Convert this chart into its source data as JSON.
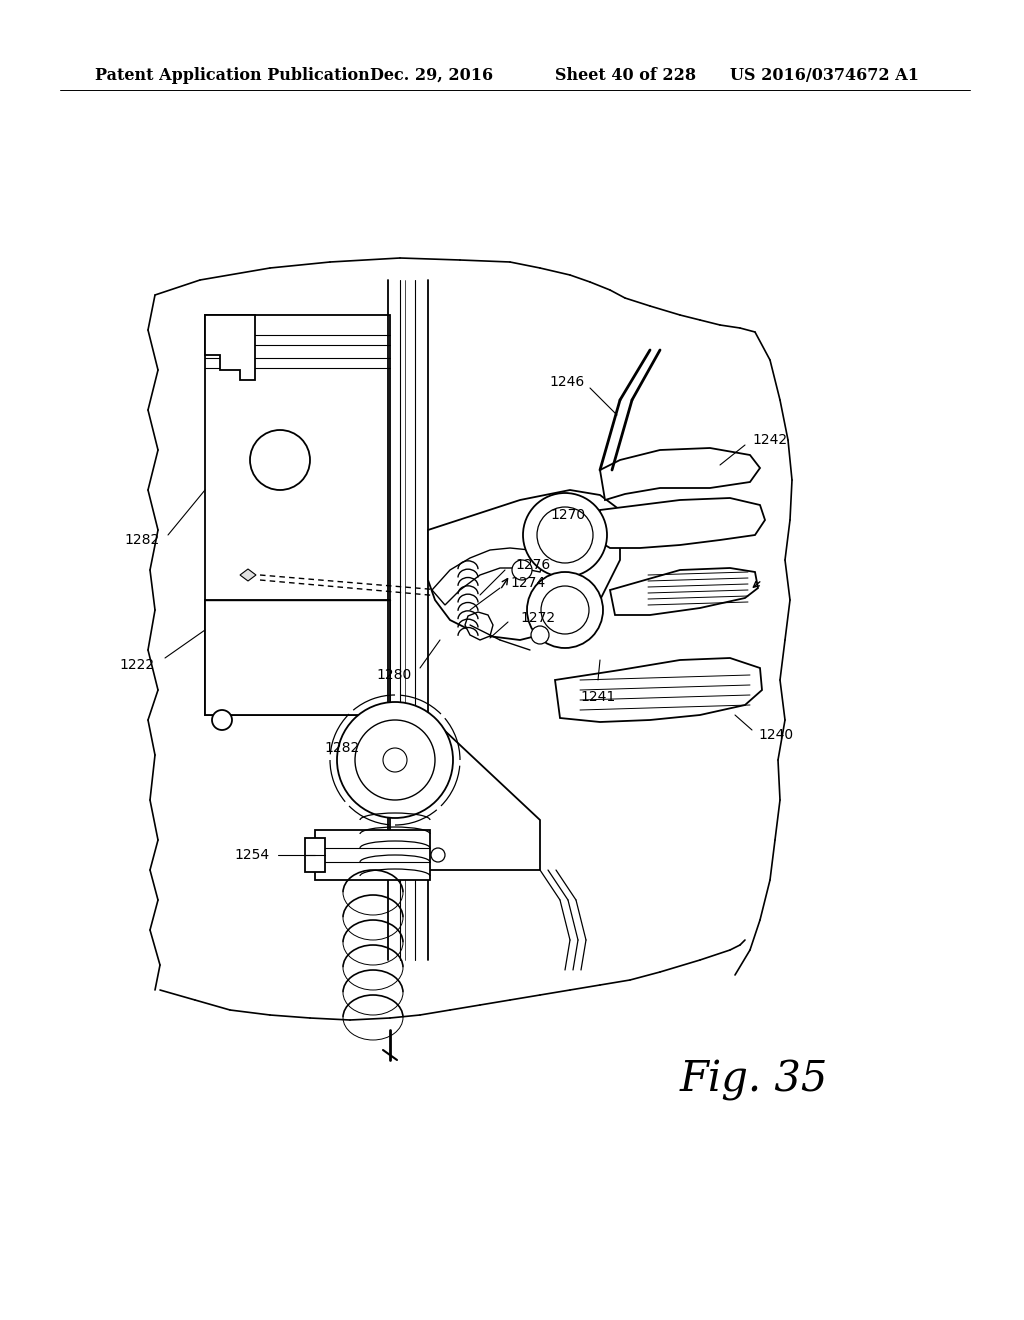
{
  "bg_color": "#ffffff",
  "header_text": "Patent Application Publication",
  "header_date": "Dec. 29, 2016",
  "header_sheet": "Sheet 40 of 228",
  "header_patent": "US 2016/0374672 A1",
  "fig_label": "Fig. 35",
  "line_color": "#000000",
  "line_width": 1.3,
  "label_fontsize": 10,
  "fig_label_fontsize": 30
}
